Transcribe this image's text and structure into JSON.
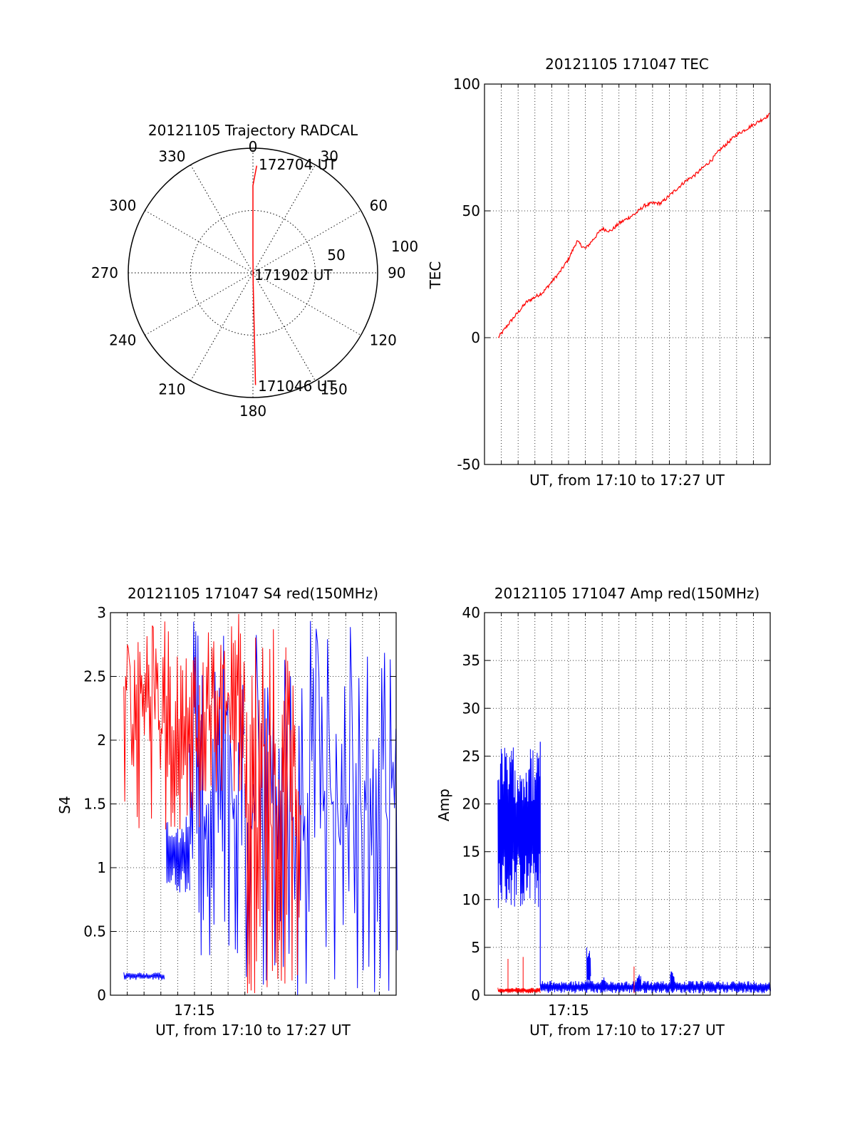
{
  "chart_data": [
    {
      "type": "polar",
      "title": "20121105 Trajectory RADCAL",
      "angle_labels": [
        "0",
        "30",
        "60",
        "90",
        "120",
        "150",
        "180",
        "210",
        "240",
        "270",
        "300",
        "330"
      ],
      "radius_labels": [
        "50",
        "100"
      ],
      "rlim": [
        0,
        100
      ],
      "grid": true,
      "series": [
        {
          "color": "#ff0000",
          "points": [
            {
              "az": 180,
              "r": 90
            },
            {
              "az": 180,
              "r": 60
            },
            {
              "az": 180,
              "r": 30
            },
            {
              "az": 180,
              "r": 8
            },
            {
              "az": 0,
              "r": 15
            },
            {
              "az": 0,
              "r": 45
            },
            {
              "az": 0,
              "r": 70
            },
            {
              "az": 2,
              "r": 86
            }
          ]
        }
      ],
      "annotations": [
        "172704 UT",
        "171902 UT",
        "171046 UT"
      ]
    },
    {
      "type": "line",
      "title": "20121105 171047 TEC",
      "xlabel": "UT, from 17:10 to 17:27 UT",
      "ylabel": "TEC",
      "xlim": [
        17.1667,
        17.45
      ],
      "ylim": [
        -50,
        100
      ],
      "yticks": [
        "-50",
        "0",
        "50",
        "100"
      ],
      "grid": true,
      "series": [
        {
          "color": "#ff0000",
          "x": [
            17.1803,
            17.1917,
            17.2,
            17.2083,
            17.2167,
            17.225,
            17.2333,
            17.2417,
            17.25,
            17.2583,
            17.2667,
            17.275,
            17.2833,
            17.2917,
            17.3,
            17.3083,
            17.3167,
            17.325,
            17.3333,
            17.3417,
            17.35,
            17.3583,
            17.3667,
            17.375,
            17.3833,
            17.3917,
            17.4,
            17.4083,
            17.4167,
            17.425,
            17.4333,
            17.4417,
            17.4495
          ],
          "y": [
            0,
            6,
            10,
            14,
            16,
            18,
            22,
            26,
            31,
            38,
            35,
            39,
            43,
            42,
            45,
            47,
            49,
            52,
            53,
            53,
            56,
            59,
            62,
            64,
            67,
            70,
            74,
            77,
            80,
            82,
            84,
            86,
            88
          ]
        }
      ]
    },
    {
      "type": "line",
      "title": "20121105 171047 S4 red(150MHz)",
      "xlabel": "UT, from 17:10 to 17:27 UT",
      "ylabel": "S4",
      "xlim": [
        17.1667,
        17.45
      ],
      "ylim": [
        0,
        3
      ],
      "xticks": [
        {
          "value": 17.25,
          "label": "17:15"
        }
      ],
      "yticks": [
        "0",
        "0.5",
        "1",
        "1.5",
        "2",
        "2.5",
        "3"
      ],
      "grid": true,
      "series": [
        {
          "color": "#0000ff",
          "x_range": [
            17.18,
            17.45
          ],
          "segments": [
            {
              "x": [
                17.18,
                17.22
              ],
              "min": 0.12,
              "max": 0.18
            },
            {
              "x": [
                17.222,
                17.245
              ],
              "min": 0.8,
              "max": 1.4
            },
            {
              "x": [
                17.245,
                17.3
              ],
              "min": 0.3,
              "max": 3.0
            },
            {
              "x": [
                17.3,
                17.45
              ],
              "min": 0.0,
              "max": 3.0
            }
          ]
        },
        {
          "color": "#ff0000",
          "x_range": [
            17.18,
            17.355
          ],
          "segments": [
            {
              "x": [
                17.18,
                17.255
              ],
              "min": 1.3,
              "max": 3.0
            },
            {
              "x": [
                17.255,
                17.3
              ],
              "min": 1.6,
              "max": 3.0
            },
            {
              "x": [
                17.3,
                17.355
              ],
              "min": 0.0,
              "max": 3.0
            }
          ]
        }
      ]
    },
    {
      "type": "line",
      "title": "20121105 171047 Amp red(150MHz)",
      "xlabel": "UT, from 17:10 to 17:27 UT",
      "ylabel": "Amp",
      "xlim": [
        17.1667,
        17.45
      ],
      "ylim": [
        0,
        40
      ],
      "xticks": [
        {
          "value": 17.25,
          "label": "17:15"
        }
      ],
      "yticks": [
        "0",
        "5",
        "10",
        "15",
        "20",
        "25",
        "30",
        "35",
        "40"
      ],
      "grid": true,
      "series": [
        {
          "color": "#0000ff",
          "segments": [
            {
              "x": [
                17.18,
                17.222
              ],
              "min": 9,
              "max": 26
            },
            {
              "x": [
                17.222,
                17.45
              ],
              "min": 0.2,
              "max": 1.5
            }
          ],
          "bursts": [
            {
              "x": 17.27,
              "max": 5.2
            },
            {
              "x": 17.285,
              "max": 2.0
            },
            {
              "x": 17.32,
              "max": 2.2
            },
            {
              "x": 17.353,
              "max": 2.5
            }
          ]
        },
        {
          "color": "#ff0000",
          "segments": [
            {
              "x": [
                17.18,
                17.222
              ],
              "min": 0.2,
              "max": 0.8
            }
          ],
          "spikes": [
            {
              "x": 17.19,
              "max": 3.8
            },
            {
              "x": 17.205,
              "max": 4.0
            },
            {
              "x": 17.315,
              "max": 3.0
            }
          ]
        }
      ]
    }
  ]
}
